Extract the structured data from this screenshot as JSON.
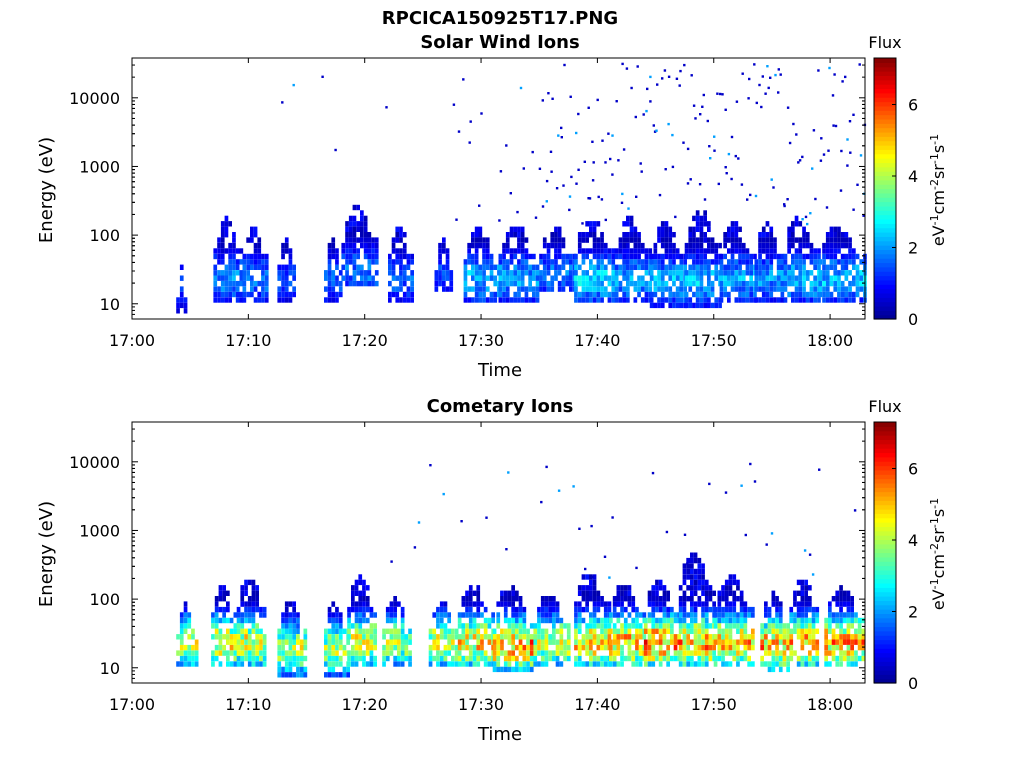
{
  "figure": {
    "title": "RPCICA150925T17.PNG",
    "colorbar_label_parts": [
      "eV",
      "-1",
      "cm",
      "-2",
      "sr",
      "-1",
      "s",
      "-1"
    ]
  },
  "colorscale": [
    "#00008f",
    "#0000ff",
    "#0080ff",
    "#00ffff",
    "#80ff80",
    "#ffff00",
    "#ff8000",
    "#ff0000",
    "#800000"
  ],
  "chart_data": [
    {
      "type": "heatmap",
      "title": "Solar Wind Ions",
      "xlabel": "Time",
      "ylabel": "Energy (eV)",
      "x_ticks": [
        "17:00",
        "17:10",
        "17:20",
        "17:30",
        "17:40",
        "17:50",
        "18:00"
      ],
      "x_tick_minutes": [
        0,
        10,
        20,
        30,
        40,
        50,
        60
      ],
      "xlim_minutes": [
        0,
        63
      ],
      "y_scale": "log",
      "y_ticks": [
        "10",
        "100",
        "1000",
        "10000"
      ],
      "y_tick_values": [
        10,
        100,
        1000,
        10000
      ],
      "ylim": [
        6,
        38000
      ],
      "colorbar": {
        "label_title": "Flux",
        "ticks": [
          "0",
          "2",
          "4",
          "6"
        ],
        "tick_values": [
          0,
          2,
          4,
          6
        ],
        "range": [
          0,
          7.3
        ]
      },
      "bursts": [
        {
          "start_min": 3.8,
          "end_min": 4.6,
          "emin": 8,
          "emax": 35,
          "peak_flux": 1.5
        },
        {
          "start_min": 7.0,
          "end_min": 9.5,
          "emin": 12,
          "emax": 160,
          "peak_flux": 2.2
        },
        {
          "start_min": 9.5,
          "end_min": 11.5,
          "emin": 12,
          "emax": 130,
          "peak_flux": 2.0
        },
        {
          "start_min": 12.5,
          "end_min": 14.0,
          "emin": 12,
          "emax": 90,
          "peak_flux": 1.6
        },
        {
          "start_min": 16.5,
          "end_min": 18.0,
          "emin": 12,
          "emax": 80,
          "peak_flux": 1.8
        },
        {
          "start_min": 18.0,
          "end_min": 21.0,
          "emin": 20,
          "emax": 250,
          "peak_flux": 2.0
        },
        {
          "start_min": 22.0,
          "end_min": 24.0,
          "emin": 12,
          "emax": 140,
          "peak_flux": 1.8
        },
        {
          "start_min": 26.0,
          "end_min": 27.5,
          "emin": 15,
          "emax": 80,
          "peak_flux": 1.6
        },
        {
          "start_min": 28.5,
          "end_min": 31.5,
          "emin": 12,
          "emax": 120,
          "peak_flux": 2.6
        },
        {
          "start_min": 31.5,
          "end_min": 35.0,
          "emin": 12,
          "emax": 130,
          "peak_flux": 2.4
        },
        {
          "start_min": 35.0,
          "end_min": 38.0,
          "emin": 15,
          "emax": 130,
          "peak_flux": 2.0
        },
        {
          "start_min": 38.0,
          "end_min": 41.5,
          "emin": 12,
          "emax": 160,
          "peak_flux": 2.8
        },
        {
          "start_min": 41.5,
          "end_min": 44.5,
          "emin": 12,
          "emax": 170,
          "peak_flux": 2.4
        },
        {
          "start_min": 44.5,
          "end_min": 47.5,
          "emin": 10,
          "emax": 140,
          "peak_flux": 2.6
        },
        {
          "start_min": 47.5,
          "end_min": 50.5,
          "emin": 10,
          "emax": 220,
          "peak_flux": 2.6
        },
        {
          "start_min": 50.5,
          "end_min": 53.5,
          "emin": 12,
          "emax": 150,
          "peak_flux": 2.4
        },
        {
          "start_min": 53.5,
          "end_min": 56.0,
          "emin": 12,
          "emax": 140,
          "peak_flux": 2.2
        },
        {
          "start_min": 56.0,
          "end_min": 59.0,
          "emin": 12,
          "emax": 180,
          "peak_flux": 2.6
        },
        {
          "start_min": 59.0,
          "end_min": 63.0,
          "emin": 12,
          "emax": 130,
          "peak_flux": 2.6
        }
      ],
      "scatter_density": [
        {
          "start_min": 2.5,
          "end_min": 28.0,
          "emax": 35000,
          "rate": 0.15
        },
        {
          "start_min": 28.0,
          "end_min": 35.0,
          "emax": 35000,
          "rate": 2.0
        },
        {
          "start_min": 35.0,
          "end_min": 63.0,
          "emax": 35000,
          "rate": 6.0
        }
      ]
    },
    {
      "type": "heatmap",
      "title": "Cometary Ions",
      "xlabel": "Time",
      "ylabel": "Energy (eV)",
      "x_ticks": [
        "17:00",
        "17:10",
        "17:20",
        "17:30",
        "17:40",
        "17:50",
        "18:00"
      ],
      "x_tick_minutes": [
        0,
        10,
        20,
        30,
        40,
        50,
        60
      ],
      "xlim_minutes": [
        0,
        63
      ],
      "y_scale": "log",
      "y_ticks": [
        "10",
        "100",
        "1000",
        "10000"
      ],
      "y_tick_values": [
        10,
        100,
        1000,
        10000
      ],
      "ylim": [
        6,
        38000
      ],
      "colorbar": {
        "label_title": "Flux",
        "ticks": [
          "0",
          "2",
          "4",
          "6"
        ],
        "tick_values": [
          0,
          2,
          4,
          6
        ],
        "range": [
          0,
          7.3
        ]
      },
      "bursts": [
        {
          "start_min": 3.8,
          "end_min": 5.5,
          "emin": 12,
          "emax": 80,
          "peak_flux": 4.8
        },
        {
          "start_min": 6.8,
          "end_min": 9.0,
          "emin": 12,
          "emax": 160,
          "peak_flux": 5.2
        },
        {
          "start_min": 9.0,
          "end_min": 11.5,
          "emin": 12,
          "emax": 200,
          "peak_flux": 5.0
        },
        {
          "start_min": 12.5,
          "end_min": 15.0,
          "emin": 8,
          "emax": 90,
          "peak_flux": 4.6
        },
        {
          "start_min": 16.5,
          "end_min": 18.5,
          "emin": 8,
          "emax": 90,
          "peak_flux": 4.4
        },
        {
          "start_min": 18.5,
          "end_min": 21.0,
          "emin": 12,
          "emax": 200,
          "peak_flux": 5.0
        },
        {
          "start_min": 21.5,
          "end_min": 24.0,
          "emin": 12,
          "emax": 100,
          "peak_flux": 4.4
        },
        {
          "start_min": 25.5,
          "end_min": 28.0,
          "emin": 12,
          "emax": 90,
          "peak_flux": 4.8
        },
        {
          "start_min": 28.0,
          "end_min": 31.0,
          "emin": 12,
          "emax": 160,
          "peak_flux": 5.4
        },
        {
          "start_min": 31.0,
          "end_min": 34.5,
          "emin": 10,
          "emax": 150,
          "peak_flux": 6.0
        },
        {
          "start_min": 34.5,
          "end_min": 37.5,
          "emin": 12,
          "emax": 120,
          "peak_flux": 4.8
        },
        {
          "start_min": 38.0,
          "end_min": 41.0,
          "emin": 12,
          "emax": 250,
          "peak_flux": 5.4
        },
        {
          "start_min": 41.0,
          "end_min": 44.0,
          "emin": 12,
          "emax": 160,
          "peak_flux": 5.6
        },
        {
          "start_min": 44.0,
          "end_min": 47.0,
          "emin": 12,
          "emax": 180,
          "peak_flux": 6.2
        },
        {
          "start_min": 47.0,
          "end_min": 50.0,
          "emin": 12,
          "emax": 450,
          "peak_flux": 5.8
        },
        {
          "start_min": 50.0,
          "end_min": 53.5,
          "emin": 12,
          "emax": 200,
          "peak_flux": 5.6
        },
        {
          "start_min": 54.0,
          "end_min": 56.5,
          "emin": 10,
          "emax": 120,
          "peak_flux": 5.8
        },
        {
          "start_min": 56.5,
          "end_min": 59.0,
          "emin": 12,
          "emax": 200,
          "peak_flux": 5.6
        },
        {
          "start_min": 59.5,
          "end_min": 63.0,
          "emin": 12,
          "emax": 140,
          "peak_flux": 5.8
        }
      ],
      "scatter_density": [
        {
          "start_min": 20.0,
          "end_min": 35.0,
          "emax": 10000,
          "rate": 0.5
        },
        {
          "start_min": 35.0,
          "end_min": 63.0,
          "emax": 10000,
          "rate": 1.0
        }
      ]
    }
  ]
}
